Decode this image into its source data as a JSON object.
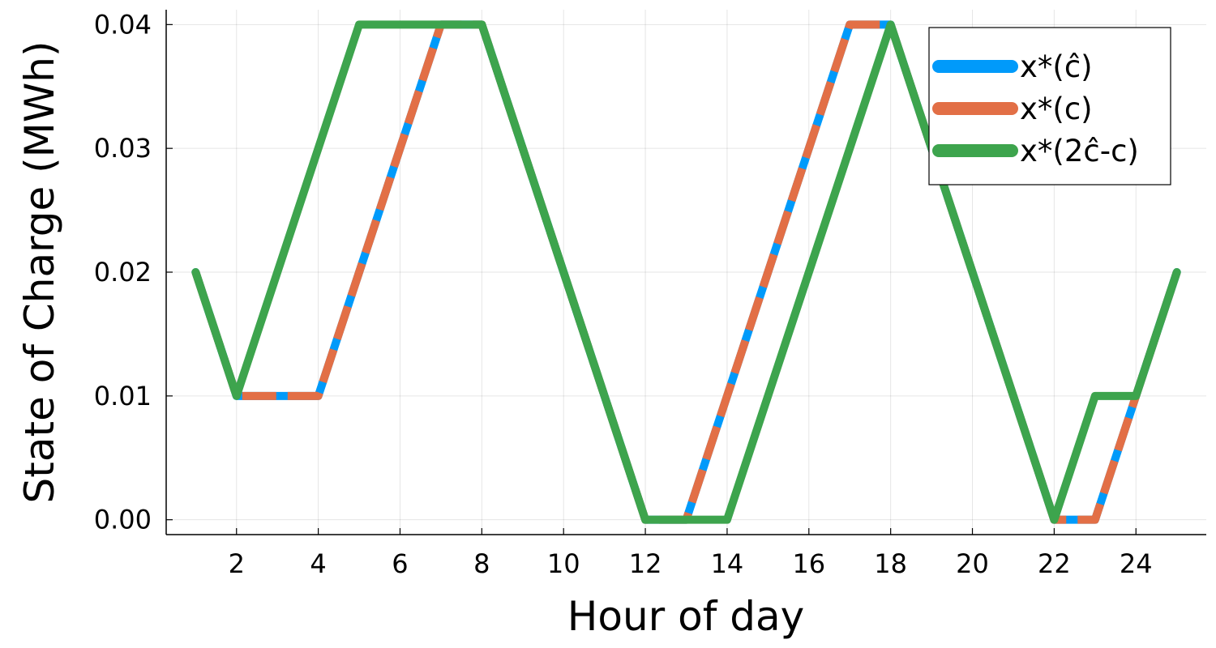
{
  "chart_data": {
    "type": "line",
    "xlabel": "Hour of day",
    "ylabel": "State of Charge (MWh)",
    "xlim": [
      0.28,
      25.72
    ],
    "ylim": [
      -0.0012,
      0.0412
    ],
    "x_ticks": [
      2,
      4,
      6,
      8,
      10,
      12,
      14,
      16,
      18,
      20,
      22,
      24
    ],
    "x_tick_labels": [
      "2",
      "4",
      "6",
      "8",
      "10",
      "12",
      "14",
      "16",
      "18",
      "20",
      "22",
      "24"
    ],
    "y_ticks": [
      0,
      0.01,
      0.02,
      0.03,
      0.04
    ],
    "y_tick_labels": [
      "0.00",
      "0.01",
      "0.02",
      "0.03",
      "0.04"
    ],
    "grid": true,
    "legend_position": "top-right",
    "x": [
      1,
      2,
      3,
      4,
      5,
      6,
      7,
      8,
      9,
      10,
      11,
      12,
      13,
      14,
      15,
      16,
      17,
      18,
      19,
      20,
      21,
      22,
      23,
      24,
      25
    ],
    "series": [
      {
        "name": "x*(ĉ)",
        "color": "#009AFA",
        "values": [
          0.02,
          0.01,
          0.01,
          0.01,
          0.02,
          0.03,
          0.04,
          0.04,
          0.03,
          0.02,
          0.01,
          0.0,
          0.0,
          0.01,
          0.02,
          0.03,
          0.04,
          0.04,
          0.03,
          0.02,
          0.01,
          0.0,
          0.0,
          0.01,
          0.02
        ]
      },
      {
        "name": "x*(c)",
        "color": "#E26F46",
        "dashed": true,
        "values": [
          0.02,
          0.01,
          0.01,
          0.01,
          0.02,
          0.03,
          0.04,
          0.04,
          0.03,
          0.02,
          0.01,
          0.0,
          0.0,
          0.01,
          0.02,
          0.03,
          0.04,
          0.04,
          0.03,
          0.02,
          0.01,
          0.0,
          0.0,
          0.01,
          0.02
        ]
      },
      {
        "name": "x*(2ĉ-c)",
        "color": "#3DA44D",
        "values": [
          0.02,
          0.01,
          0.02,
          0.03,
          0.04,
          0.04,
          0.04,
          0.04,
          0.03,
          0.02,
          0.01,
          0.0,
          0.0,
          0.0,
          0.01,
          0.02,
          0.03,
          0.04,
          0.03,
          0.02,
          0.01,
          0.0,
          0.01,
          0.01,
          0.02
        ]
      }
    ]
  }
}
